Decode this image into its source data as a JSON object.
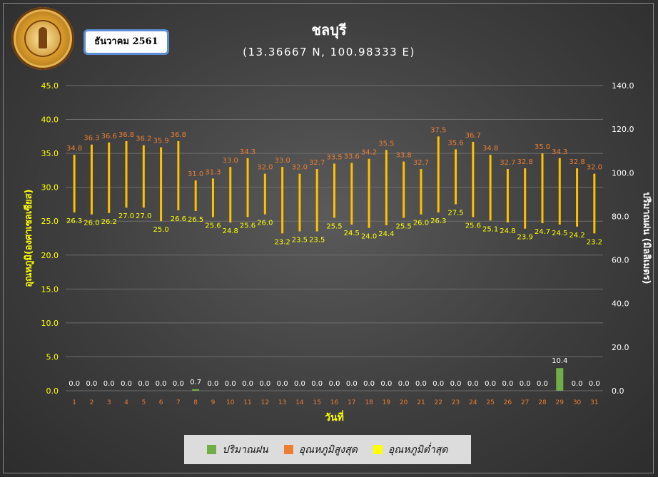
{
  "header": {
    "date_label": "ธันวาคม 2561",
    "title": "ชลบุรี",
    "subtitle": "(13.36667 N, 100.98333 E)"
  },
  "logo": {
    "icon": "meteorological-department-seal-icon"
  },
  "chart_data": {
    "type": "bar",
    "title": "ชลบุรี",
    "subtitle": "(13.36667 N, 100.98333 E)",
    "xlabel": "วันที่",
    "ylabel_left": "อุณหภูมิ(องศาเซลเซียส)",
    "ylabel_right": "ปริมาณฝน (มิลลิเมตร)",
    "ylim_left": [
      0,
      45
    ],
    "ylim_right": [
      0,
      140
    ],
    "yticks_left": [
      "0.0",
      "5.0",
      "10.0",
      "15.0",
      "20.0",
      "25.0",
      "30.0",
      "35.0",
      "40.0",
      "45.0"
    ],
    "yticks_right": [
      "0.0",
      "20.0",
      "40.0",
      "60.0",
      "80.0",
      "100.0",
      "120.0",
      "140.0"
    ],
    "categories": [
      "1",
      "2",
      "3",
      "4",
      "5",
      "6",
      "7",
      "8",
      "9",
      "10",
      "11",
      "12",
      "13",
      "14",
      "15",
      "16",
      "17",
      "18",
      "19",
      "20",
      "21",
      "22",
      "23",
      "24",
      "25",
      "26",
      "27",
      "28",
      "29",
      "30",
      "31"
    ],
    "series": [
      {
        "name": "ปริมาณฝน",
        "axis": "right",
        "color": "#70ad47",
        "values": [
          0,
          0,
          0,
          0,
          0,
          0,
          0,
          0.7,
          0,
          0,
          0,
          0,
          0,
          0,
          0,
          0,
          0,
          0,
          0,
          0,
          0,
          0,
          0,
          0,
          0,
          0,
          0,
          0,
          10.4,
          0,
          0
        ],
        "labels": [
          "0.0",
          "0.0",
          "0.0",
          "0.0",
          "0.0",
          "0.0",
          "0.0",
          "0.7",
          "0.0",
          "0.0",
          "0.0",
          "0.0",
          "0.0",
          "0.0",
          "0.0",
          "0.0",
          "0.0",
          "0.0",
          "0.0",
          "0.0",
          "0.0",
          "0.0",
          "0.0",
          "0.0",
          "0.0",
          "0.0",
          "0.0",
          "0.0",
          "10.4",
          "0.0",
          "0.0"
        ]
      },
      {
        "name": "อุณหภูมิสูงสุด",
        "axis": "left",
        "color": "#ed7d31",
        "values": [
          34.8,
          36.3,
          36.6,
          36.8,
          36.2,
          35.9,
          36.8,
          31.0,
          31.3,
          33.0,
          34.3,
          32.0,
          33.0,
          32.0,
          32.7,
          33.5,
          33.6,
          34.2,
          35.5,
          33.8,
          32.7,
          37.5,
          35.6,
          36.7,
          34.8,
          32.7,
          32.8,
          35.0,
          34.3,
          32.8,
          32.0
        ],
        "labels": [
          "34.8",
          "36.3",
          "36.6",
          "36.8",
          "36.2",
          "35.9",
          "36.8",
          "31.0",
          "31.3",
          "33.0",
          "34.3",
          "32.0",
          "33.0",
          "32.0",
          "32.7",
          "33.5",
          "33.6",
          "34.2",
          "35.5",
          "33.8",
          "32.7",
          "37.5",
          "35.6",
          "36.7",
          "34.8",
          "32.7",
          "32.8",
          "35.0",
          "34.3",
          "32.8",
          "32.0"
        ]
      },
      {
        "name": "อุณหภูมิต่ำสุด",
        "axis": "left",
        "color": "#ffff00",
        "values": [
          26.3,
          26.0,
          26.2,
          27.0,
          27.0,
          25.0,
          26.6,
          26.5,
          25.6,
          24.8,
          25.6,
          26.0,
          23.2,
          23.5,
          23.5,
          25.5,
          24.5,
          24.0,
          24.4,
          25.5,
          26.0,
          26.3,
          27.5,
          25.6,
          25.1,
          24.8,
          23.9,
          24.7,
          24.5,
          24.2,
          23.2
        ],
        "labels": [
          "26.3",
          "26.0",
          "26.2",
          "27.0",
          "27.0",
          "25.0",
          "26.6",
          "26.5",
          "25.6",
          "24.8",
          "25.6",
          "26.0",
          "23.2",
          "23.5",
          "23.5",
          "25.5",
          "24.5",
          "24.0",
          "24.4",
          "25.5",
          "26.0",
          "26.3",
          "27.5",
          "25.6",
          "25.1",
          "24.8",
          "23.9",
          "24.7",
          "24.5",
          "24.2",
          "23.2"
        ]
      }
    ],
    "range_bar_color": "#ffc000",
    "legend_position": "bottom",
    "grid": true
  },
  "legend": [
    {
      "label": "ปริมาณฝน",
      "color": "#70ad47"
    },
    {
      "label": "อุณหภูมิสูงสุด",
      "color": "#ed7d31"
    },
    {
      "label": "อุณหภูมิต่ำสุด",
      "color": "#ffff00"
    }
  ]
}
